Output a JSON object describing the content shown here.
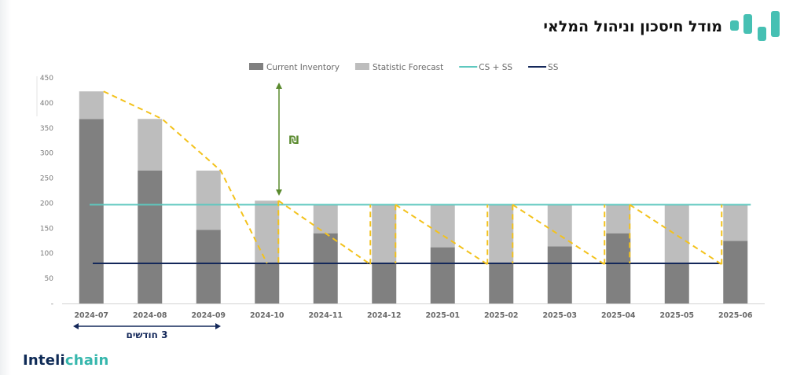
{
  "header": {
    "title": "מודל חיסכון וניהול המלאי"
  },
  "brand": {
    "part1": "Inteli",
    "part2": "chain"
  },
  "colors": {
    "current_inventory": "#808080",
    "statistic_forecast": "#bdbdbd",
    "cs_ss": "#5ec8bf",
    "ss": "#14285a",
    "consumption": "#f3c21c",
    "savings_arrow": "#5a8a2e",
    "period_arrow": "#14285a"
  },
  "annotations": {
    "savings_label": "₪",
    "period_label": "3 חודשים"
  },
  "chart_data": {
    "type": "bar",
    "categories": [
      "2024-07",
      "2024-08",
      "2024-09",
      "2024-10",
      "2024-11",
      "2024-12",
      "2025-01",
      "2025-02",
      "2025-03",
      "2025-04",
      "2025-05",
      "2025-06"
    ],
    "series": [
      {
        "name": "Current Inventory",
        "kind": "bar",
        "values": [
          368,
          265,
          147,
          80,
          140,
          80,
          112,
          80,
          114,
          140,
          80,
          125
        ]
      },
      {
        "name": "Statistic Forecast",
        "kind": "bar",
        "values": [
          55,
          103,
          118,
          125,
          57,
          117,
          85,
          117,
          83,
          57,
          117,
          72
        ]
      },
      {
        "name": "CS + SS",
        "kind": "line",
        "values": [
          197,
          197,
          197,
          197,
          197,
          197,
          197,
          197,
          197,
          197,
          197,
          197
        ]
      },
      {
        "name": "SS",
        "kind": "line",
        "values": [
          80,
          80,
          80,
          80,
          80,
          80,
          80,
          80,
          80,
          80,
          80,
          80
        ]
      }
    ],
    "yticks": [
      "-",
      "50",
      "100",
      "150",
      "200",
      "250",
      "300",
      "350",
      "400",
      "450"
    ],
    "ylim": [
      0,
      450
    ],
    "legend_position": "top",
    "grid": false
  }
}
